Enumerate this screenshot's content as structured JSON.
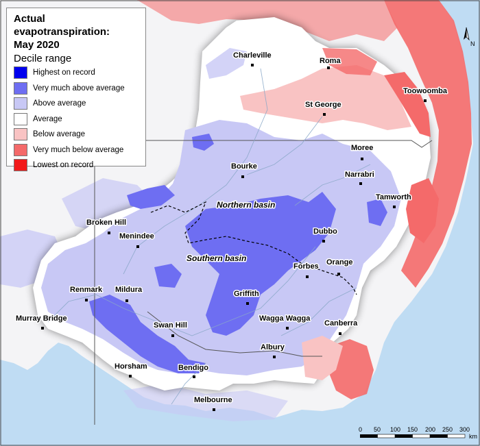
{
  "legend": {
    "title": "Actual evapotranspiration:",
    "subtitle": "May 2020",
    "heading": "Decile range",
    "items": [
      {
        "label": "Highest on record",
        "color": "#0000ee"
      },
      {
        "label": "Very much above average",
        "color": "#6e6ef2"
      },
      {
        "label": "Above average",
        "color": "#c8c8f5"
      },
      {
        "label": "Average",
        "color": "#ffffff"
      },
      {
        "label": "Below average",
        "color": "#f9c3c3"
      },
      {
        "label": "Very much below average",
        "color": "#f46a6a"
      },
      {
        "label": "Lowest on record",
        "color": "#f21a1a"
      }
    ]
  },
  "places": {
    "charleville": "Charleville",
    "roma": "Roma",
    "toowoomba": "Toowoomba",
    "st_george": "St George",
    "moree": "Moree",
    "bourke": "Bourke",
    "narrabri": "Narrabri",
    "tamworth": "Tamworth",
    "broken_hill": "Broken Hill",
    "menindee": "Menindee",
    "dubbo": "Dubbo",
    "forbes": "Forbes",
    "orange": "Orange",
    "renmark": "Renmark",
    "mildura": "Mildura",
    "griffith": "Griffith",
    "murray_bridge": "Murray Bridge",
    "swan_hill": "Swan Hill",
    "wagga_wagga": "Wagga Wagga",
    "canberra": "Canberra",
    "albury": "Albury",
    "horsham": "Horsham",
    "bendigo": "Bendigo",
    "melbourne": "Melbourne"
  },
  "basins": {
    "northern": "Northern basin",
    "southern": "Southern basin"
  },
  "scale": {
    "ticks": [
      "0",
      "50",
      "100",
      "150",
      "200",
      "250",
      "300"
    ],
    "unit": "km"
  },
  "north_label": "N"
}
